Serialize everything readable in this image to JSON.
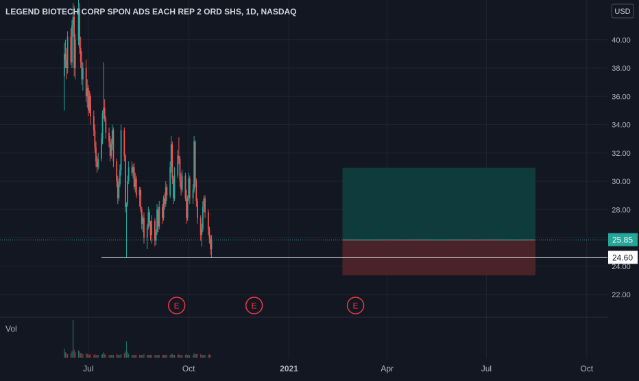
{
  "chart_data": {
    "type": "candlestick",
    "title": "LEGEND BIOTECH CORP SPON ADS EACH REP 2 ORD SHS, 1D, NASDAQ",
    "currency": "USD",
    "ylim": [
      20.4,
      42.8
    ],
    "y_ticks": [
      "22.00",
      "24.00",
      "26.00",
      "28.00",
      "30.00",
      "32.00",
      "34.00",
      "36.00",
      "38.00",
      "40.00"
    ],
    "x_ticks": [
      {
        "label": "Jul",
        "date": "2020-07-01"
      },
      {
        "label": "Oct",
        "date": "2020-10-01"
      },
      {
        "label": "2021",
        "date": "2021-01-01"
      },
      {
        "label": "Apr",
        "date": "2021-04-01"
      },
      {
        "label": "Jul",
        "date": "2021-07-01"
      },
      {
        "label": "Oct",
        "date": "2021-10-01"
      }
    ],
    "x_range": [
      "2020-04-11",
      "2021-10-20"
    ],
    "last_price": "25.85",
    "support_price": "24.60",
    "support_level": 24.6,
    "support_start": "2020-07-13",
    "position": {
      "start": "2021-02-19",
      "end": "2021-08-15",
      "entry": 25.85,
      "target": 30.95,
      "stop": 23.35
    },
    "earnings": [
      {
        "label": "E",
        "date": "2020-09-20"
      },
      {
        "label": "E",
        "date": "2020-11-30"
      },
      {
        "label": "E",
        "date": "2021-03-03"
      }
    ],
    "volume_label": "Vol",
    "colors": {
      "up": "#26a69a",
      "down": "#ef5350",
      "background": "#131722",
      "grid": "#1f2433",
      "earnings": "#f23645",
      "price_badge": "#26a69a",
      "target_zone": "#0f3b3c",
      "stop_zone": "#4a2328",
      "axis_text": "#b2b5be"
    },
    "candles_ohlc_from_2020-06-09": [
      [
        37.4,
        39.8,
        35.0,
        39.0
      ],
      [
        39.0,
        40.0,
        38.0,
        38.6
      ],
      [
        38.6,
        39.4,
        37.2,
        38.0
      ],
      [
        38.0,
        40.6,
        37.6,
        40.2
      ],
      [
        40.2,
        40.8,
        38.2,
        38.4
      ],
      [
        38.4,
        41.4,
        38.0,
        41.0
      ],
      [
        41.0,
        42.6,
        40.2,
        41.6
      ],
      [
        41.6,
        42.4,
        37.4,
        38.0
      ],
      [
        38.0,
        40.4,
        37.2,
        40.0
      ],
      [
        40.0,
        42.8,
        39.6,
        42.2
      ],
      [
        42.2,
        42.6,
        39.0,
        39.4
      ],
      [
        39.4,
        40.2,
        38.0,
        38.4
      ],
      [
        38.4,
        39.2,
        36.8,
        37.2
      ],
      [
        37.2,
        38.4,
        36.4,
        38.0
      ],
      [
        38.0,
        38.6,
        35.6,
        36.0
      ],
      [
        36.0,
        37.2,
        35.2,
        36.6
      ],
      [
        36.6,
        36.8,
        34.6,
        35.0
      ],
      [
        35.0,
        36.4,
        34.8,
        36.0
      ],
      [
        36.0,
        36.2,
        34.0,
        34.6
      ],
      [
        34.6,
        35.0,
        33.2,
        33.6
      ],
      [
        33.6,
        34.0,
        32.0,
        32.4
      ],
      [
        32.4,
        32.8,
        31.0,
        31.4
      ],
      [
        31.4,
        31.8,
        30.6,
        31.0
      ],
      [
        31.0,
        32.0,
        30.8,
        31.6
      ],
      [
        31.6,
        33.4,
        31.4,
        33.0
      ],
      [
        33.0,
        35.0,
        32.6,
        34.8
      ],
      [
        34.8,
        38.4,
        34.4,
        35.2
      ],
      [
        35.2,
        35.8,
        34.2,
        34.4
      ],
      [
        34.4,
        34.6,
        33.0,
        33.4
      ],
      [
        33.4,
        33.8,
        32.4,
        32.8
      ],
      [
        32.8,
        33.2,
        31.4,
        31.8
      ],
      [
        31.8,
        33.0,
        31.6,
        32.6
      ],
      [
        32.6,
        34.0,
        32.2,
        33.6
      ],
      [
        33.6,
        33.8,
        31.0,
        31.4
      ],
      [
        31.4,
        31.6,
        29.6,
        30.0
      ],
      [
        30.0,
        30.4,
        28.4,
        28.8
      ],
      [
        28.8,
        30.2,
        28.6,
        29.8
      ],
      [
        29.8,
        31.2,
        29.6,
        30.8
      ],
      [
        30.8,
        34.0,
        30.4,
        33.6
      ],
      [
        33.6,
        33.8,
        31.4,
        31.8
      ],
      [
        31.8,
        31.9,
        27.8,
        28.2
      ],
      [
        28.2,
        28.5,
        24.6,
        28.4
      ],
      [
        28.4,
        30.4,
        28.2,
        30.0
      ],
      [
        30.0,
        31.4,
        29.8,
        31.0
      ],
      [
        31.0,
        31.4,
        30.4,
        30.6
      ],
      [
        30.6,
        31.2,
        30.2,
        31.0
      ],
      [
        31.0,
        31.3,
        29.4,
        29.6
      ],
      [
        29.6,
        30.6,
        29.2,
        30.2
      ],
      [
        30.2,
        30.4,
        28.8,
        29.0
      ],
      [
        29.0,
        29.6,
        28.2,
        29.4
      ],
      [
        29.4,
        29.6,
        27.8,
        28.0
      ],
      [
        28.0,
        28.2,
        26.6,
        27.0
      ],
      [
        27.0,
        27.6,
        26.4,
        27.4
      ],
      [
        27.4,
        27.8,
        25.6,
        26.0
      ],
      [
        26.0,
        27.0,
        25.2,
        26.8
      ],
      [
        26.8,
        28.2,
        26.6,
        27.8
      ],
      [
        27.8,
        28.0,
        26.8,
        27.0
      ],
      [
        27.0,
        27.2,
        25.8,
        26.2
      ],
      [
        26.2,
        27.6,
        25.6,
        27.2
      ],
      [
        27.2,
        27.4,
        25.4,
        25.8
      ],
      [
        25.8,
        26.6,
        25.5,
        26.4
      ],
      [
        26.4,
        28.4,
        26.2,
        28.0
      ],
      [
        28.0,
        28.2,
        26.4,
        26.8
      ],
      [
        26.8,
        28.6,
        26.6,
        28.2
      ],
      [
        28.2,
        28.4,
        27.0,
        27.4
      ],
      [
        27.4,
        29.0,
        27.2,
        28.8
      ],
      [
        28.8,
        29.2,
        28.0,
        28.4
      ],
      [
        28.4,
        30.0,
        28.2,
        29.6
      ],
      [
        29.6,
        29.8,
        28.6,
        29.0
      ],
      [
        29.0,
        31.4,
        28.8,
        31.0
      ],
      [
        31.0,
        33.2,
        30.6,
        32.6
      ],
      [
        32.6,
        32.8,
        29.8,
        30.2
      ],
      [
        30.2,
        30.4,
        28.4,
        28.8
      ],
      [
        28.8,
        31.0,
        28.6,
        30.4
      ],
      [
        30.4,
        32.2,
        30.2,
        31.8
      ],
      [
        31.8,
        33.1,
        31.2,
        31.6
      ],
      [
        31.6,
        31.8,
        29.6,
        30.0
      ],
      [
        30.0,
        30.6,
        29.0,
        29.4
      ],
      [
        29.4,
        30.8,
        29.2,
        30.4
      ],
      [
        30.4,
        30.6,
        28.6,
        28.8
      ],
      [
        28.8,
        29.4,
        27.0,
        27.4
      ],
      [
        27.4,
        29.0,
        27.2,
        28.8
      ],
      [
        28.8,
        30.6,
        28.6,
        30.2
      ],
      [
        30.2,
        30.4,
        28.4,
        28.8
      ],
      [
        28.8,
        29.8,
        28.4,
        29.4
      ],
      [
        29.4,
        33.2,
        29.2,
        32.8
      ],
      [
        32.8,
        32.9,
        29.6,
        30.0
      ],
      [
        30.0,
        30.2,
        28.2,
        28.6
      ],
      [
        28.6,
        28.8,
        27.0,
        27.4
      ],
      [
        27.4,
        27.6,
        25.8,
        26.2
      ],
      [
        26.2,
        27.0,
        25.4,
        26.6
      ],
      [
        26.6,
        28.6,
        26.4,
        28.2
      ],
      [
        28.2,
        29.0,
        27.8,
        28.8
      ],
      [
        28.8,
        29.0,
        27.4,
        27.8
      ],
      [
        27.8,
        28.0,
        26.2,
        26.6
      ],
      [
        26.6,
        26.8,
        25.6,
        26.0
      ],
      [
        26.0,
        26.2,
        24.8,
        25.2
      ],
      [
        25.2,
        26.2,
        24.6,
        25.85
      ]
    ],
    "volume_from_2020-06-09": [
      10,
      6,
      5,
      4,
      5,
      7,
      42,
      9,
      6,
      8,
      7,
      5,
      5,
      4,
      5,
      4,
      4,
      3,
      4,
      3,
      4,
      3,
      3,
      3,
      3,
      4,
      6,
      4,
      3,
      3,
      3,
      3,
      3,
      3,
      4,
      3,
      3,
      3,
      4,
      5,
      7,
      18,
      6,
      4,
      3,
      3,
      3,
      3,
      3,
      3,
      3,
      3,
      3,
      4,
      3,
      3,
      3,
      3,
      3,
      3,
      3,
      3,
      3,
      3,
      3,
      3,
      3,
      3,
      3,
      3,
      4,
      4,
      3,
      3,
      3,
      4,
      3,
      3,
      3,
      3,
      4,
      3,
      3,
      3,
      3,
      5,
      4,
      4,
      4,
      4,
      3,
      3,
      3,
      3,
      3,
      4,
      3
    ]
  }
}
